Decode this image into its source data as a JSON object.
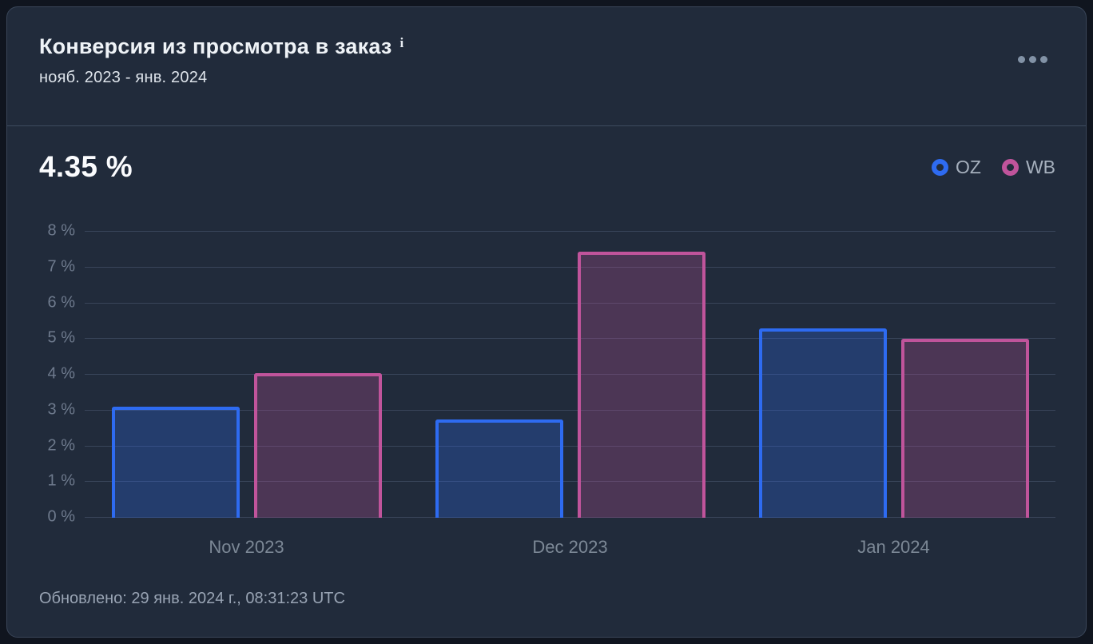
{
  "header": {
    "title": "Конверсия из просмотра в заказ",
    "info_icon": "i",
    "date_range": "нояб. 2023 - янв. 2024"
  },
  "stats": {
    "big_value": "4.35 %"
  },
  "legend": [
    {
      "label": "OZ",
      "color": "#2e6bf1"
    },
    {
      "label": "WB",
      "color": "#c0549b"
    }
  ],
  "chart_data": {
    "type": "bar",
    "title": "Конверсия из просмотра в заказ",
    "categories": [
      "Nov 2023",
      "Dec 2023",
      "Jan 2024"
    ],
    "series": [
      {
        "name": "OZ",
        "color": "#2e6bf1",
        "values": [
          3.1,
          2.75,
          5.3
        ]
      },
      {
        "name": "WB",
        "color": "#c0549b",
        "values": [
          4.05,
          7.45,
          5.0
        ]
      }
    ],
    "xlabel": "",
    "ylabel": "",
    "ylim": [
      0,
      8
    ],
    "ytick_step": 1,
    "ytick_suffix": " %",
    "grid": true,
    "legend_position": "top-right",
    "bar_fill_opacity": 0.28
  },
  "footer": {
    "updated_text": "Обновлено: 29 янв. 2024 г., 08:31:23 UTC"
  }
}
